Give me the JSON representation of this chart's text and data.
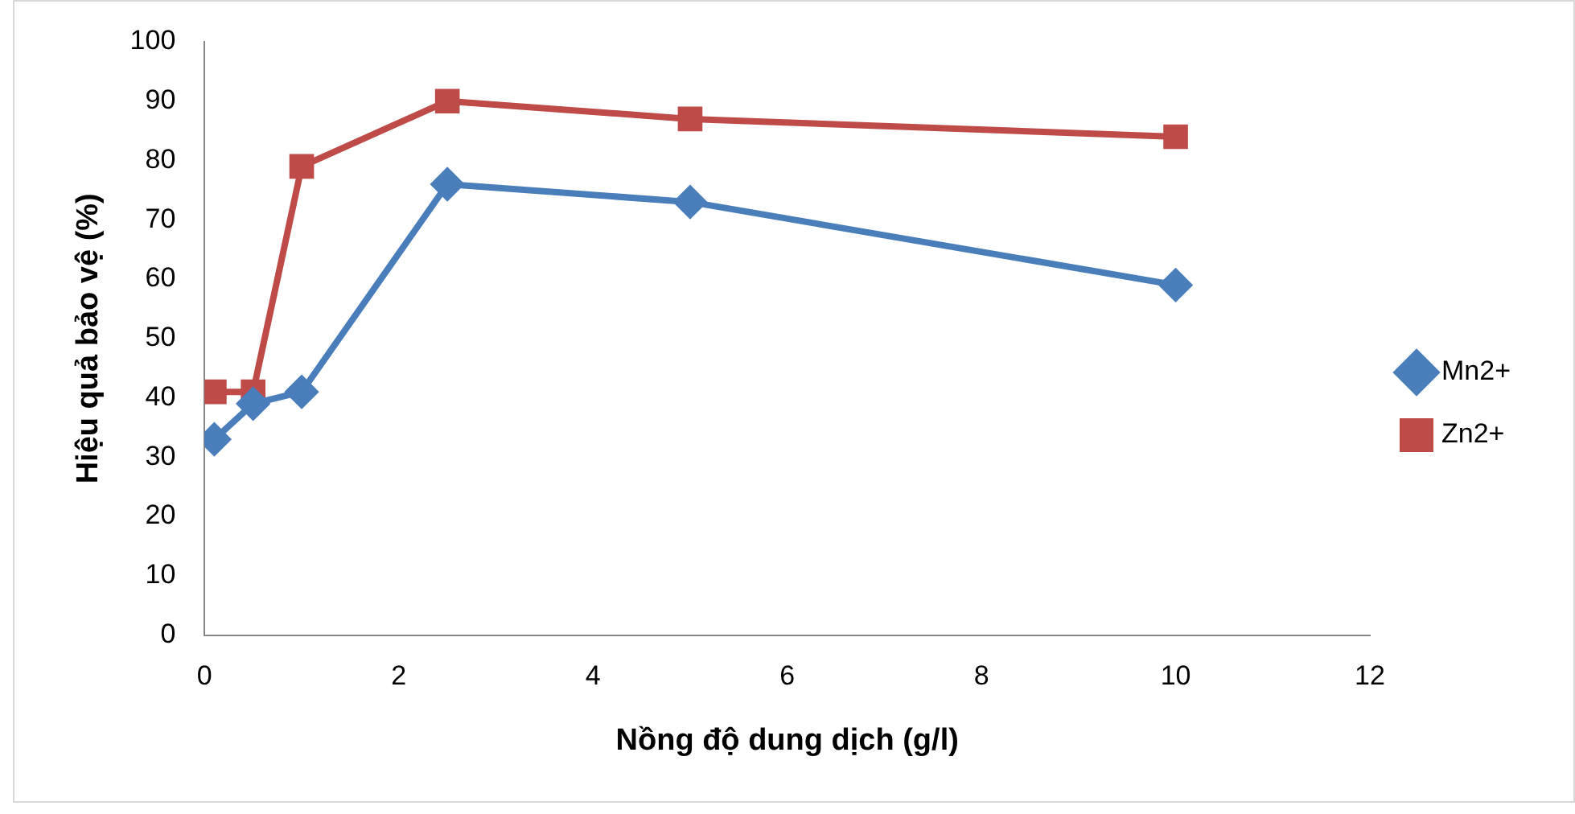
{
  "chart_data": {
    "type": "line",
    "xlabel": "Nồng độ dung dịch (g/l)",
    "ylabel": "Hiệu quả bảo vệ (%)",
    "xlim": [
      0,
      12
    ],
    "xticks": [
      0,
      2,
      4,
      6,
      8,
      10,
      12
    ],
    "ylim": [
      0,
      100
    ],
    "yticks": [
      0,
      10,
      20,
      30,
      40,
      50,
      60,
      70,
      80,
      90,
      100
    ],
    "grid": false,
    "legend": "right",
    "series": [
      {
        "name": "Mn2+",
        "color": "#4a7ebb",
        "marker": "diamond",
        "x": [
          0.1,
          0.5,
          1,
          2.5,
          5,
          10
        ],
        "values": [
          33,
          39,
          41,
          76,
          73,
          59
        ]
      },
      {
        "name": "Zn2+",
        "color": "#be4b48",
        "marker": "square",
        "x": [
          0.1,
          0.5,
          1,
          2.5,
          5,
          10
        ],
        "values": [
          41,
          41,
          79,
          90,
          87,
          84
        ]
      }
    ]
  }
}
